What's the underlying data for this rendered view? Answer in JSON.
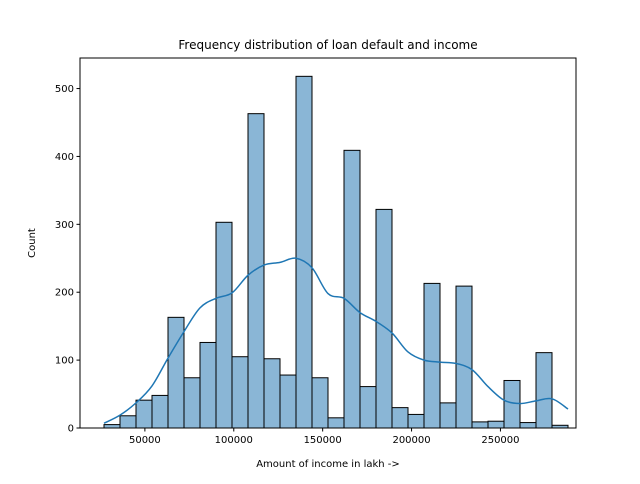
{
  "chart_data": {
    "type": "bar",
    "title": "Frequency distribution of loan default and income",
    "xlabel": "Amount of income in lakh ->",
    "ylabel": "Count",
    "xlim": [
      13500,
      292500
    ],
    "ylim": [
      0,
      545
    ],
    "xticks": [
      50000,
      100000,
      150000,
      200000,
      250000
    ],
    "xtick_labels": [
      "50000",
      "100000",
      "150000",
      "200000",
      "250000"
    ],
    "yticks": [
      0,
      100,
      200,
      300,
      400,
      500
    ],
    "ytick_labels": [
      "0",
      "100",
      "200",
      "300",
      "400",
      "500"
    ],
    "grid": false,
    "bar_color": "#8ab6d6",
    "bar_edge_color": "#000000",
    "kde_color": "#1f77b4",
    "bins": [
      {
        "x0": 27000,
        "x1": 36000,
        "count": 5
      },
      {
        "x0": 36000,
        "x1": 45000,
        "count": 18
      },
      {
        "x0": 45000,
        "x1": 54000,
        "count": 41
      },
      {
        "x0": 54000,
        "x1": 63000,
        "count": 48
      },
      {
        "x0": 63000,
        "x1": 72000,
        "count": 163
      },
      {
        "x0": 72000,
        "x1": 81000,
        "count": 74
      },
      {
        "x0": 81000,
        "x1": 90000,
        "count": 126
      },
      {
        "x0": 90000,
        "x1": 99000,
        "count": 303
      },
      {
        "x0": 99000,
        "x1": 108000,
        "count": 105
      },
      {
        "x0": 108000,
        "x1": 117000,
        "count": 463
      },
      {
        "x0": 117000,
        "x1": 126000,
        "count": 102
      },
      {
        "x0": 126000,
        "x1": 135000,
        "count": 78
      },
      {
        "x0": 135000,
        "x1": 144000,
        "count": 518
      },
      {
        "x0": 144000,
        "x1": 153000,
        "count": 74
      },
      {
        "x0": 153000,
        "x1": 162000,
        "count": 15
      },
      {
        "x0": 162000,
        "x1": 171000,
        "count": 409
      },
      {
        "x0": 171000,
        "x1": 180000,
        "count": 61
      },
      {
        "x0": 180000,
        "x1": 189000,
        "count": 322
      },
      {
        "x0": 189000,
        "x1": 198000,
        "count": 30
      },
      {
        "x0": 198000,
        "x1": 207000,
        "count": 20
      },
      {
        "x0": 207000,
        "x1": 216000,
        "count": 213
      },
      {
        "x0": 216000,
        "x1": 225000,
        "count": 37
      },
      {
        "x0": 225000,
        "x1": 234000,
        "count": 209
      },
      {
        "x0": 234000,
        "x1": 243000,
        "count": 9
      },
      {
        "x0": 243000,
        "x1": 252000,
        "count": 10
      },
      {
        "x0": 252000,
        "x1": 261000,
        "count": 70
      },
      {
        "x0": 261000,
        "x1": 270000,
        "count": 8
      },
      {
        "x0": 270000,
        "x1": 279000,
        "count": 111
      },
      {
        "x0": 279000,
        "x1": 288000,
        "count": 4
      }
    ],
    "kde": {
      "x": [
        27000,
        36000,
        45000,
        54000,
        63000,
        72000,
        81000,
        90000,
        99000,
        108000,
        117000,
        126000,
        135000,
        144000,
        153000,
        162000,
        171000,
        180000,
        189000,
        198000,
        207000,
        216000,
        225000,
        234000,
        243000,
        252000,
        261000,
        270000,
        279000,
        288000
      ],
      "y": [
        7,
        19,
        37,
        62,
        103,
        142,
        177,
        191,
        199,
        225,
        240,
        244,
        250,
        236,
        198,
        191,
        170,
        157,
        140,
        112,
        100,
        97,
        95,
        86,
        61,
        41,
        36,
        40,
        43,
        28
      ]
    }
  }
}
